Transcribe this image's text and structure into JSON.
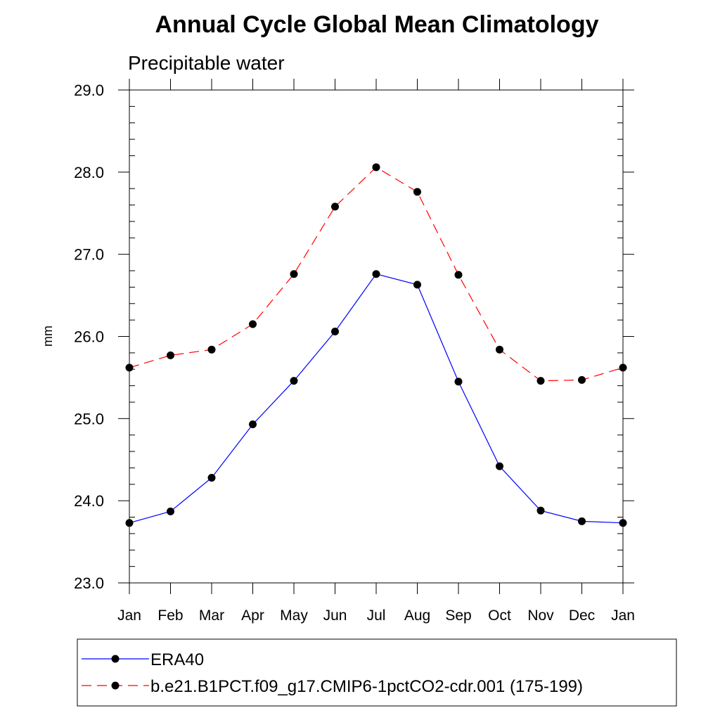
{
  "chart_data": {
    "type": "line",
    "title": "Annual Cycle Global Mean Climatology",
    "subtitle": "Precipitable water",
    "xlabel": "",
    "ylabel": "mm",
    "categories": [
      "Jan",
      "Feb",
      "Mar",
      "Apr",
      "May",
      "Jun",
      "Jul",
      "Aug",
      "Sep",
      "Oct",
      "Nov",
      "Dec",
      "Jan"
    ],
    "ylim": [
      23.0,
      29.0
    ],
    "yticks": [
      23.0,
      24.0,
      25.0,
      26.0,
      27.0,
      28.0,
      29.0
    ],
    "ytick_labels": [
      "23.0",
      "24.0",
      "25.0",
      "26.0",
      "27.0",
      "28.0",
      "29.0"
    ],
    "grid": false,
    "legend_position": "bottom",
    "series": [
      {
        "name": "ERA40",
        "color": "#0000ff",
        "line_style": "solid",
        "marker": "filled-circle",
        "values": [
          23.73,
          23.87,
          24.28,
          24.93,
          25.46,
          26.06,
          26.76,
          26.63,
          25.45,
          24.42,
          23.88,
          23.75,
          23.73
        ]
      },
      {
        "name": "b.e21.B1PCT.f09_g17.CMIP6-1pctCO2-cdr.001 (175-199)",
        "color": "#ff0000",
        "line_style": "dashed",
        "marker": "filled-circle",
        "values": [
          25.62,
          25.77,
          25.84,
          26.15,
          26.76,
          27.58,
          28.06,
          27.76,
          26.75,
          25.84,
          25.46,
          25.47,
          25.62
        ]
      }
    ]
  }
}
